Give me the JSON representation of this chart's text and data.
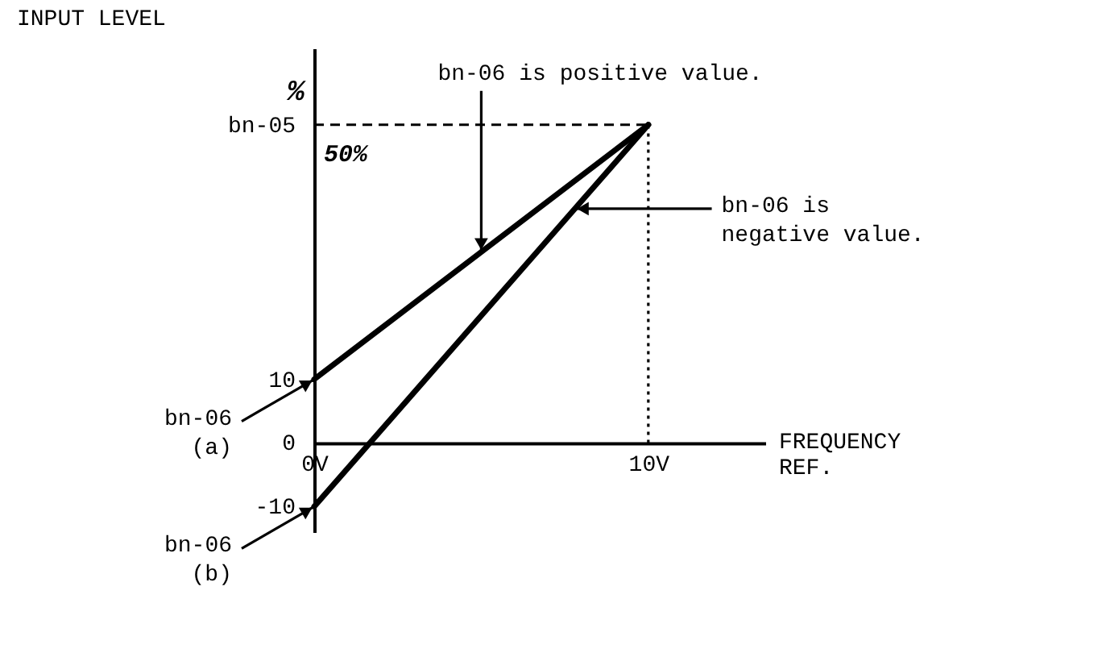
{
  "chart_data": {
    "type": "line",
    "xlabel": "FREQUENCY\nREF.",
    "ylabel": "INPUT LEVEL",
    "x": [
      0,
      10
    ],
    "series": [
      {
        "color": "#000000",
        "values": [
          10,
          50
        ]
      },
      {
        "color": "#000000",
        "values": [
          -10,
          50
        ]
      }
    ],
    "xlim": [
      0,
      13.5
    ],
    "ylim": [
      -14,
      62
    ],
    "xticks": [
      {
        "value": 0,
        "label": "0V"
      },
      {
        "value": 10,
        "label": "10V"
      }
    ],
    "yticks": [
      -10,
      0,
      10,
      {
        "value": 50,
        "label": "bn-05"
      }
    ],
    "ref_lines": [
      {
        "axis": "y",
        "value": 50,
        "line_style": "dashed",
        "color": "#000000"
      },
      {
        "axis": "x",
        "value": 10,
        "line_style": "dotted",
        "color": "#000000"
      }
    ],
    "annotations": [
      "%",
      "50%",
      {
        "text": "bn-06 is positive value.",
        "x": 5,
        "y": 30
      },
      {
        "text": "bn-06 is\nnegative value.",
        "x": 7.8,
        "y": 36.8
      },
      {
        "text": "bn-06\n(a)",
        "x": 0,
        "y": 10
      },
      {
        "text": "bn-06\n(b)",
        "x": 0,
        "y": -10
      }
    ],
    "grid": false,
    "legend": false,
    "marker": "none",
    "line_style": "solid"
  }
}
